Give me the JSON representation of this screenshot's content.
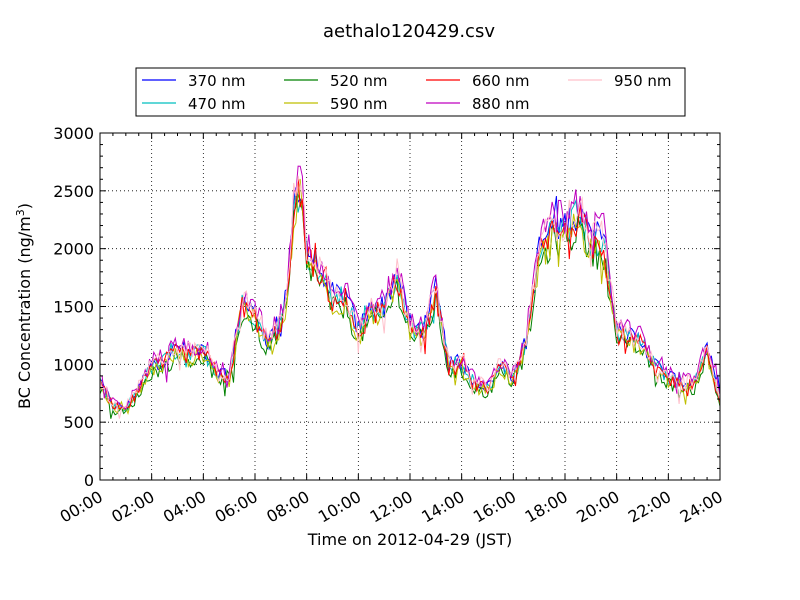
{
  "chart_data": {
    "type": "line",
    "title": "aethalo120429.csv",
    "xlabel": "Time on 2012-04-29 (JST)",
    "ylabel_main": "BC Concentration (ng/m",
    "ylabel_sup": "3",
    "ylabel_end": ")",
    "xlim": [
      0,
      24
    ],
    "ylim": [
      0,
      3000
    ],
    "x_unit": "hours",
    "x_tick_values": [
      0,
      2,
      4,
      6,
      8,
      10,
      12,
      14,
      16,
      18,
      20,
      22,
      24
    ],
    "x_tick_labels": [
      "00:00",
      "02:00",
      "04:00",
      "06:00",
      "08:00",
      "10:00",
      "12:00",
      "14:00",
      "16:00",
      "18:00",
      "20:00",
      "22:00",
      "24:00"
    ],
    "y_tick_values": [
      0,
      500,
      1000,
      1500,
      2000,
      2500,
      3000
    ],
    "y_tick_labels": [
      "0",
      "500",
      "1000",
      "1500",
      "2000",
      "2500",
      "3000"
    ],
    "grid": true,
    "legend_position": "top",
    "base_profile": {
      "x": [
        0,
        0.5,
        1,
        1.5,
        2,
        2.5,
        3,
        3.5,
        4,
        4.5,
        5,
        5.5,
        6,
        6.5,
        7,
        7.25,
        7.5,
        7.75,
        8,
        8.5,
        9,
        9.5,
        10,
        10.5,
        11,
        11.5,
        12,
        12.5,
        13,
        13.5,
        14,
        14.5,
        15,
        15.5,
        16,
        16.5,
        17,
        17.5,
        18,
        18.5,
        19,
        19.5,
        20,
        20.5,
        21,
        21.5,
        22,
        22.5,
        23,
        23.5,
        24
      ],
      "y": [
        850,
        650,
        620,
        800,
        1000,
        1050,
        1150,
        1100,
        1150,
        950,
        900,
        1550,
        1450,
        1200,
        1400,
        1600,
        2400,
        2600,
        2000,
        1850,
        1600,
        1600,
        1300,
        1500,
        1500,
        1800,
        1350,
        1300,
        1650,
        1000,
        1000,
        850,
        800,
        1000,
        900,
        1200,
        2000,
        2200,
        2200,
        2350,
        2100,
        2100,
        1300,
        1250,
        1200,
        1000,
        900,
        850,
        850,
        1150,
        700
      ]
    },
    "series": [
      {
        "name": "370 nm",
        "color": "#0000ff",
        "scale": 1.0
      },
      {
        "name": "470 nm",
        "color": "#00bfbf",
        "scale": 0.98
      },
      {
        "name": "520 nm",
        "color": "#008000",
        "scale": 0.93
      },
      {
        "name": "590 nm",
        "color": "#bfbf00",
        "scale": 0.95
      },
      {
        "name": "660 nm",
        "color": "#ff0000",
        "scale": 0.97
      },
      {
        "name": "880 nm",
        "color": "#bf00bf",
        "scale": 1.03
      },
      {
        "name": "950 nm",
        "color": "#ffc0cb",
        "scale": 1.01
      }
    ]
  }
}
